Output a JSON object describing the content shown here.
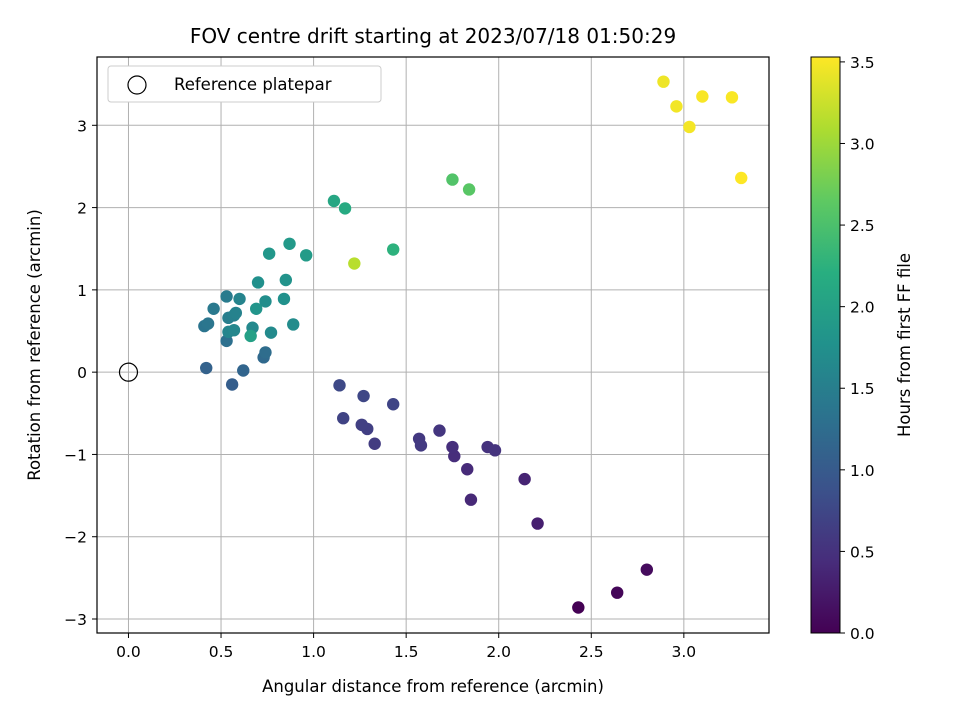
{
  "chart_data": {
    "type": "scatter",
    "title": "FOV centre drift starting at 2023/07/18 01:50:29",
    "xlabel": "Angular distance from reference (arcmin)",
    "ylabel": "Rotation from reference (arcmin)",
    "xlim": [
      -0.17,
      3.46
    ],
    "ylim": [
      -3.17,
      3.83
    ],
    "xticks": [
      0.0,
      0.5,
      1.0,
      1.5,
      2.0,
      2.5,
      3.0
    ],
    "xtick_labels": [
      "0.0",
      "0.5",
      "1.0",
      "1.5",
      "2.0",
      "2.5",
      "3.0"
    ],
    "yticks": [
      -3,
      -2,
      -1,
      0,
      1,
      2,
      3
    ],
    "ytick_labels": [
      "−3",
      "−2",
      "−1",
      "0",
      "1",
      "2",
      "3"
    ],
    "grid": true,
    "legend": {
      "location": "upper-left",
      "entries": [
        {
          "label": "Reference platepar",
          "marker": "open-circle"
        }
      ]
    },
    "reference_point": {
      "x": 0.0,
      "y": 0.0
    },
    "colorbar": {
      "label": "Hours from first FF file",
      "colormap": "viridis",
      "min": 0.0,
      "max": 3.53,
      "ticks": [
        0.0,
        0.5,
        1.0,
        1.5,
        2.0,
        2.5,
        3.0,
        3.5
      ],
      "tick_labels": [
        "0.0",
        "0.5",
        "1.0",
        "1.5",
        "2.0",
        "2.5",
        "3.0",
        "3.5"
      ]
    },
    "points": [
      {
        "x": 2.43,
        "y": -2.86,
        "hours": 0.0
      },
      {
        "x": 2.64,
        "y": -2.68,
        "hours": 0.05
      },
      {
        "x": 2.8,
        "y": -2.4,
        "hours": 0.1
      },
      {
        "x": 2.21,
        "y": -1.84,
        "hours": 0.3
      },
      {
        "x": 2.14,
        "y": -1.3,
        "hours": 0.35
      },
      {
        "x": 1.85,
        "y": -1.55,
        "hours": 0.4
      },
      {
        "x": 1.83,
        "y": -1.18,
        "hours": 0.42
      },
      {
        "x": 1.76,
        "y": -1.02,
        "hours": 0.45
      },
      {
        "x": 1.75,
        "y": -0.91,
        "hours": 0.47
      },
      {
        "x": 1.94,
        "y": -0.91,
        "hours": 0.5
      },
      {
        "x": 1.98,
        "y": -0.95,
        "hours": 0.52
      },
      {
        "x": 1.68,
        "y": -0.71,
        "hours": 0.55
      },
      {
        "x": 1.57,
        "y": -0.81,
        "hours": 0.57
      },
      {
        "x": 1.58,
        "y": -0.89,
        "hours": 0.6
      },
      {
        "x": 1.33,
        "y": -0.87,
        "hours": 0.62
      },
      {
        "x": 1.29,
        "y": -0.69,
        "hours": 0.65
      },
      {
        "x": 1.26,
        "y": -0.64,
        "hours": 0.67
      },
      {
        "x": 1.16,
        "y": -0.56,
        "hours": 0.7
      },
      {
        "x": 1.43,
        "y": -0.39,
        "hours": 0.72
      },
      {
        "x": 1.27,
        "y": -0.29,
        "hours": 0.75
      },
      {
        "x": 1.14,
        "y": -0.16,
        "hours": 0.78
      },
      {
        "x": 0.56,
        "y": -0.15,
        "hours": 1.05
      },
      {
        "x": 0.42,
        "y": 0.05,
        "hours": 1.1
      },
      {
        "x": 0.62,
        "y": 0.02,
        "hours": 1.15
      },
      {
        "x": 0.73,
        "y": 0.18,
        "hours": 1.2
      },
      {
        "x": 0.74,
        "y": 0.24,
        "hours": 1.25
      },
      {
        "x": 0.53,
        "y": 0.38,
        "hours": 1.3
      },
      {
        "x": 0.41,
        "y": 0.56,
        "hours": 1.35
      },
      {
        "x": 0.43,
        "y": 0.59,
        "hours": 1.38
      },
      {
        "x": 0.46,
        "y": 0.77,
        "hours": 1.42
      },
      {
        "x": 0.53,
        "y": 0.92,
        "hours": 1.45
      },
      {
        "x": 0.54,
        "y": 0.66,
        "hours": 1.5
      },
      {
        "x": 0.57,
        "y": 0.69,
        "hours": 1.52
      },
      {
        "x": 0.58,
        "y": 0.72,
        "hours": 1.55
      },
      {
        "x": 0.6,
        "y": 0.89,
        "hours": 1.58
      },
      {
        "x": 0.54,
        "y": 0.49,
        "hours": 1.6
      },
      {
        "x": 0.57,
        "y": 0.51,
        "hours": 1.62
      },
      {
        "x": 0.67,
        "y": 0.54,
        "hours": 1.65
      },
      {
        "x": 0.77,
        "y": 0.48,
        "hours": 1.67
      },
      {
        "x": 0.89,
        "y": 0.58,
        "hours": 1.7
      },
      {
        "x": 0.74,
        "y": 0.86,
        "hours": 1.72
      },
      {
        "x": 0.7,
        "y": 1.09,
        "hours": 1.75
      },
      {
        "x": 0.84,
        "y": 0.89,
        "hours": 1.77
      },
      {
        "x": 0.85,
        "y": 1.12,
        "hours": 1.8
      },
      {
        "x": 0.69,
        "y": 0.77,
        "hours": 1.82
      },
      {
        "x": 0.76,
        "y": 1.44,
        "hours": 1.85
      },
      {
        "x": 0.87,
        "y": 1.56,
        "hours": 1.88
      },
      {
        "x": 0.96,
        "y": 1.42,
        "hours": 1.92
      },
      {
        "x": 0.66,
        "y": 0.44,
        "hours": 2.0
      },
      {
        "x": 1.11,
        "y": 2.08,
        "hours": 2.08
      },
      {
        "x": 1.17,
        "y": 1.99,
        "hours": 2.15
      },
      {
        "x": 1.43,
        "y": 1.49,
        "hours": 2.25
      },
      {
        "x": 1.75,
        "y": 2.34,
        "hours": 2.55
      },
      {
        "x": 1.84,
        "y": 2.22,
        "hours": 2.6
      },
      {
        "x": 1.22,
        "y": 1.32,
        "hours": 3.15
      },
      {
        "x": 2.89,
        "y": 3.53,
        "hours": 3.45
      },
      {
        "x": 2.96,
        "y": 3.23,
        "hours": 3.47
      },
      {
        "x": 3.03,
        "y": 2.98,
        "hours": 3.48
      },
      {
        "x": 3.1,
        "y": 3.35,
        "hours": 3.5
      },
      {
        "x": 3.26,
        "y": 3.34,
        "hours": 3.51
      },
      {
        "x": 3.31,
        "y": 2.36,
        "hours": 3.53
      }
    ]
  }
}
